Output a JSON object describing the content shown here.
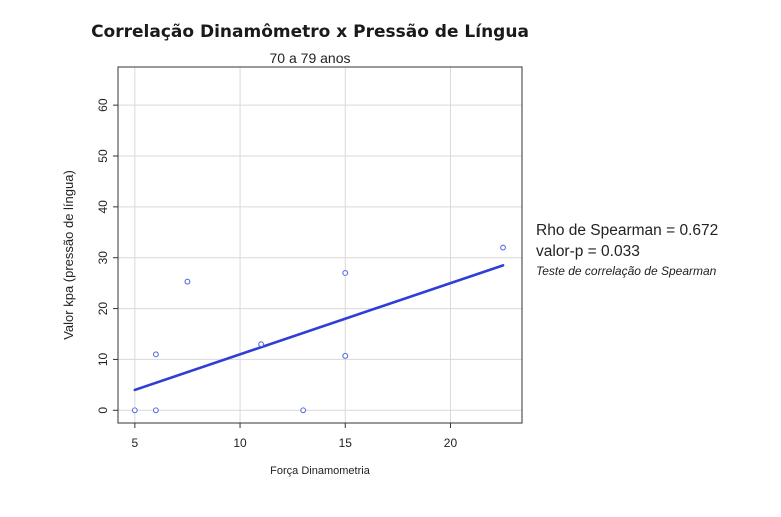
{
  "chart_data": {
    "type": "scatter",
    "title": "Correlação Dinamômetro x Pressão de Língua",
    "subtitle": "70 a 79 anos",
    "xlabel": "Força Dinamometria",
    "ylabel": "Valor kpa (pressão de língua)",
    "xlim": [
      4.2,
      23.4
    ],
    "ylim": [
      -2.5,
      67.5
    ],
    "xticks": [
      5,
      10,
      15,
      20
    ],
    "yticks": [
      0,
      10,
      20,
      30,
      40,
      50,
      60
    ],
    "grid": true,
    "points": [
      {
        "x": 5,
        "y": 0
      },
      {
        "x": 6,
        "y": 0
      },
      {
        "x": 6,
        "y": 11
      },
      {
        "x": 7.5,
        "y": 25.3
      },
      {
        "x": 11,
        "y": 13
      },
      {
        "x": 13,
        "y": 0
      },
      {
        "x": 15,
        "y": 27
      },
      {
        "x": 15,
        "y": 10.7
      },
      {
        "x": 22.5,
        "y": 32
      }
    ],
    "fit_line": {
      "x": [
        5,
        22.5
      ],
      "y": [
        4,
        28.5
      ]
    },
    "colors": {
      "points": "#5b6ee0",
      "line": "#2f3fd6",
      "grid": "#d9d9d9",
      "axis": "#333333"
    }
  },
  "annotations": {
    "rho": "Rho de Spearman = 0.672",
    "pvalue": "valor-p = 0.033",
    "test": "Teste de correlação de Spearman"
  }
}
